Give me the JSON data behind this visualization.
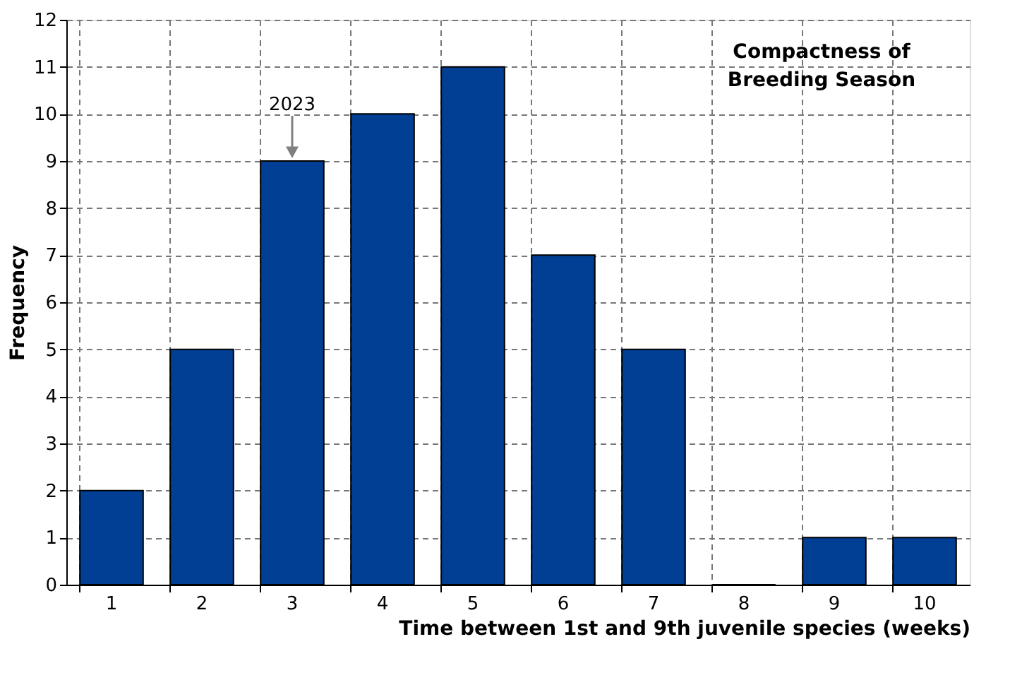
{
  "chart_data": {
    "type": "bar",
    "title": "Compactness of Breeding Season",
    "categories": [
      "1",
      "2",
      "3",
      "4",
      "5",
      "6",
      "7",
      "8",
      "9",
      "10"
    ],
    "values": [
      2,
      5,
      9,
      10,
      11,
      7,
      5,
      0,
      1,
      1
    ],
    "color": "#003f93",
    "xlabel": "Time between 1st and 9th juvenile species (weeks)",
    "ylabel": "Frequency",
    "ylim": [
      0,
      12
    ],
    "yticks": [
      0,
      1,
      2,
      3,
      4,
      5,
      6,
      7,
      8,
      9,
      10,
      11,
      12
    ],
    "grid": true,
    "annotations": [
      {
        "text": "2023",
        "x": "3",
        "y": 9
      }
    ]
  }
}
